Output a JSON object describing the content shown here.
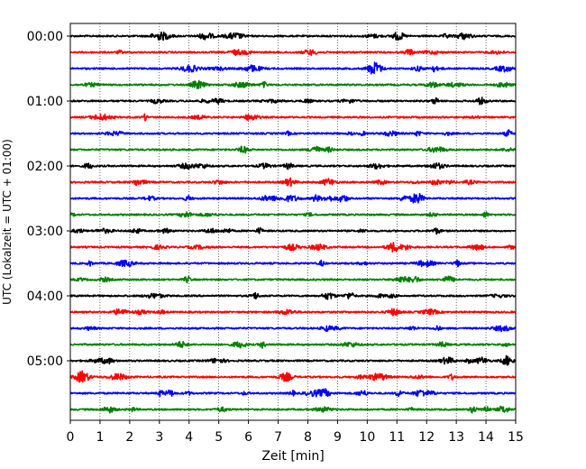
{
  "chart_data": {
    "type": "line",
    "xlabel": "Zeit  [min]",
    "ylabel": "UTC (Lokalzeit = UTC + 01:00)",
    "xlim": [
      0,
      15
    ],
    "x_ticks": [
      "0",
      "1",
      "2",
      "3",
      "4",
      "5",
      "6",
      "7",
      "8",
      "9",
      "10",
      "11",
      "12",
      "13",
      "14",
      "15"
    ],
    "y_tick_labels": [
      "00:00",
      "01:00",
      "02:00",
      "03:00",
      "04:00",
      "05:00"
    ],
    "vertical_grid": true,
    "grid_style": "dotted",
    "trace_colors": [
      "#000000",
      "#ff0000",
      "#0000ff",
      "#008000"
    ],
    "trace_count": 24,
    "trace_interval_minutes": 15,
    "events": [
      {
        "trace": 2,
        "x": 10.25,
        "amplitude": 1.0
      },
      {
        "trace": 3,
        "x": 4.3,
        "amplitude": 0.6
      },
      {
        "trace": 9,
        "x": 8.7,
        "amplitude": 0.5
      },
      {
        "trace": 13,
        "x": 10.9,
        "amplitude": 0.7
      },
      {
        "trace": 21,
        "x": 0.4,
        "amplitude": 0.7
      },
      {
        "trace": 22,
        "x": 11.8,
        "amplitude": 0.5
      },
      {
        "trace": 20,
        "x": 12.7,
        "amplitude": 0.5
      },
      {
        "trace": 19,
        "x": 5.7,
        "amplitude": 0.45
      }
    ]
  }
}
